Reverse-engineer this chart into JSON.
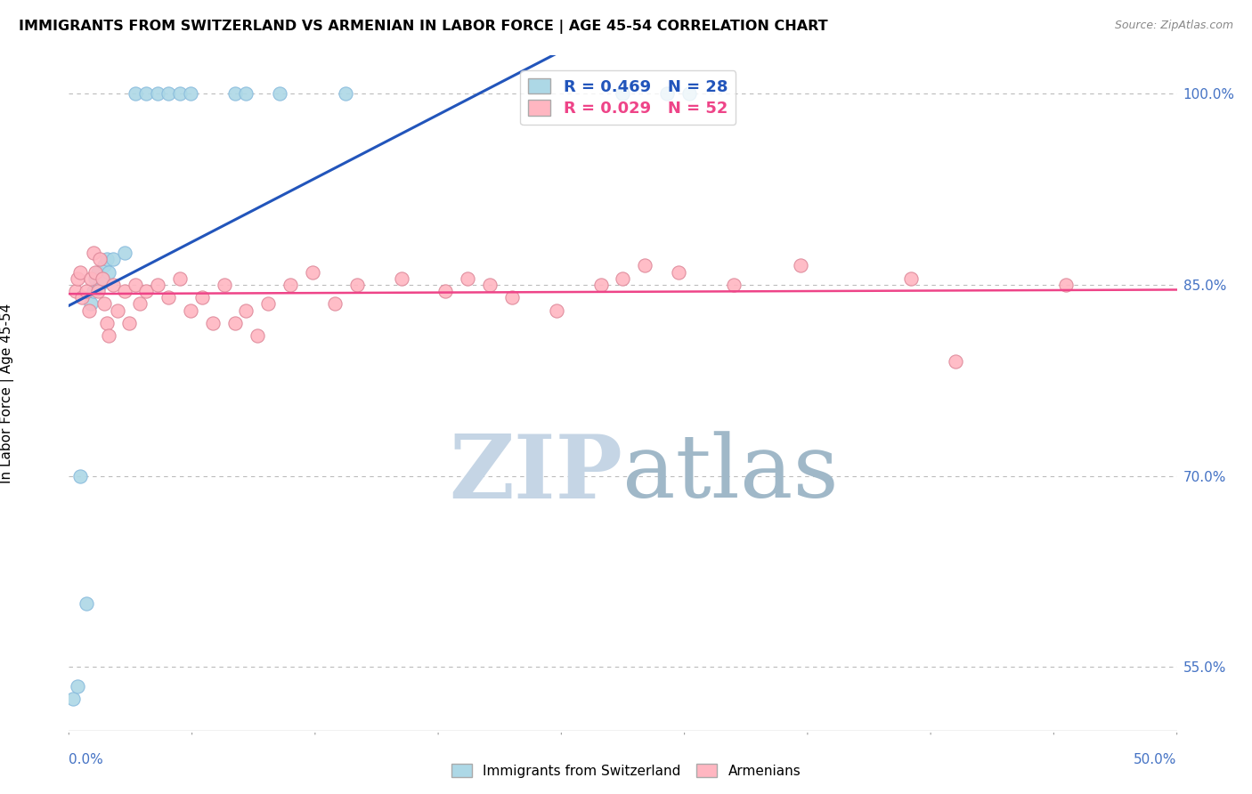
{
  "title": "IMMIGRANTS FROM SWITZERLAND VS ARMENIAN IN LABOR FORCE | AGE 45-54 CORRELATION CHART",
  "source": "Source: ZipAtlas.com",
  "ylabel": "In Labor Force | Age 45-54",
  "xlim": [
    0.0,
    50.0
  ],
  "ylim": [
    50.0,
    103.0
  ],
  "yticks_right": [
    55.0,
    70.0,
    85.0,
    100.0
  ],
  "swiss_R": 0.469,
  "swiss_N": 28,
  "armenian_R": 0.029,
  "armenian_N": 52,
  "swiss_color": "#ADD8E6",
  "armenian_color": "#FFB6C1",
  "swiss_line_color": "#2255BB",
  "armenian_line_color": "#EE4488",
  "swiss_points": [
    [
      0.2,
      52.5
    ],
    [
      0.4,
      53.5
    ],
    [
      0.5,
      70.0
    ],
    [
      0.8,
      60.0
    ],
    [
      1.0,
      83.5
    ],
    [
      1.1,
      84.5
    ],
    [
      1.2,
      85.5
    ],
    [
      1.3,
      86.0
    ],
    [
      1.4,
      85.0
    ],
    [
      1.5,
      85.5
    ],
    [
      1.6,
      86.5
    ],
    [
      1.7,
      87.0
    ],
    [
      1.8,
      86.0
    ],
    [
      2.0,
      87.0
    ],
    [
      2.5,
      87.5
    ],
    [
      3.0,
      100.0
    ],
    [
      3.5,
      100.0
    ],
    [
      4.0,
      100.0
    ],
    [
      4.5,
      100.0
    ],
    [
      5.0,
      100.0
    ],
    [
      5.5,
      100.0
    ],
    [
      7.5,
      100.0
    ],
    [
      8.0,
      100.0
    ],
    [
      9.5,
      100.0
    ],
    [
      12.5,
      100.0
    ],
    [
      25.0,
      100.0
    ],
    [
      27.0,
      100.0
    ],
    [
      28.0,
      100.0
    ]
  ],
  "armenian_points": [
    [
      0.3,
      84.5
    ],
    [
      0.4,
      85.5
    ],
    [
      0.5,
      86.0
    ],
    [
      0.6,
      84.0
    ],
    [
      0.8,
      84.5
    ],
    [
      0.9,
      83.0
    ],
    [
      1.0,
      85.5
    ],
    [
      1.1,
      87.5
    ],
    [
      1.2,
      86.0
    ],
    [
      1.3,
      84.5
    ],
    [
      1.4,
      87.0
    ],
    [
      1.5,
      85.5
    ],
    [
      1.6,
      83.5
    ],
    [
      1.7,
      82.0
    ],
    [
      1.8,
      81.0
    ],
    [
      2.0,
      85.0
    ],
    [
      2.2,
      83.0
    ],
    [
      2.5,
      84.5
    ],
    [
      2.7,
      82.0
    ],
    [
      3.0,
      85.0
    ],
    [
      3.2,
      83.5
    ],
    [
      3.5,
      84.5
    ],
    [
      4.0,
      85.0
    ],
    [
      4.5,
      84.0
    ],
    [
      5.0,
      85.5
    ],
    [
      5.5,
      83.0
    ],
    [
      6.0,
      84.0
    ],
    [
      6.5,
      82.0
    ],
    [
      7.0,
      85.0
    ],
    [
      7.5,
      82.0
    ],
    [
      8.0,
      83.0
    ],
    [
      8.5,
      81.0
    ],
    [
      9.0,
      83.5
    ],
    [
      10.0,
      85.0
    ],
    [
      11.0,
      86.0
    ],
    [
      12.0,
      83.5
    ],
    [
      13.0,
      85.0
    ],
    [
      15.0,
      85.5
    ],
    [
      17.0,
      84.5
    ],
    [
      18.0,
      85.5
    ],
    [
      19.0,
      85.0
    ],
    [
      20.0,
      84.0
    ],
    [
      22.0,
      83.0
    ],
    [
      24.0,
      85.0
    ],
    [
      25.0,
      85.5
    ],
    [
      26.0,
      86.5
    ],
    [
      27.5,
      86.0
    ],
    [
      30.0,
      85.0
    ],
    [
      33.0,
      86.5
    ],
    [
      38.0,
      85.5
    ],
    [
      40.0,
      79.0
    ],
    [
      45.0,
      85.0
    ]
  ],
  "watermark_ZIP_color": "#C8D8E8",
  "watermark_atlas_color": "#A8B8C8"
}
